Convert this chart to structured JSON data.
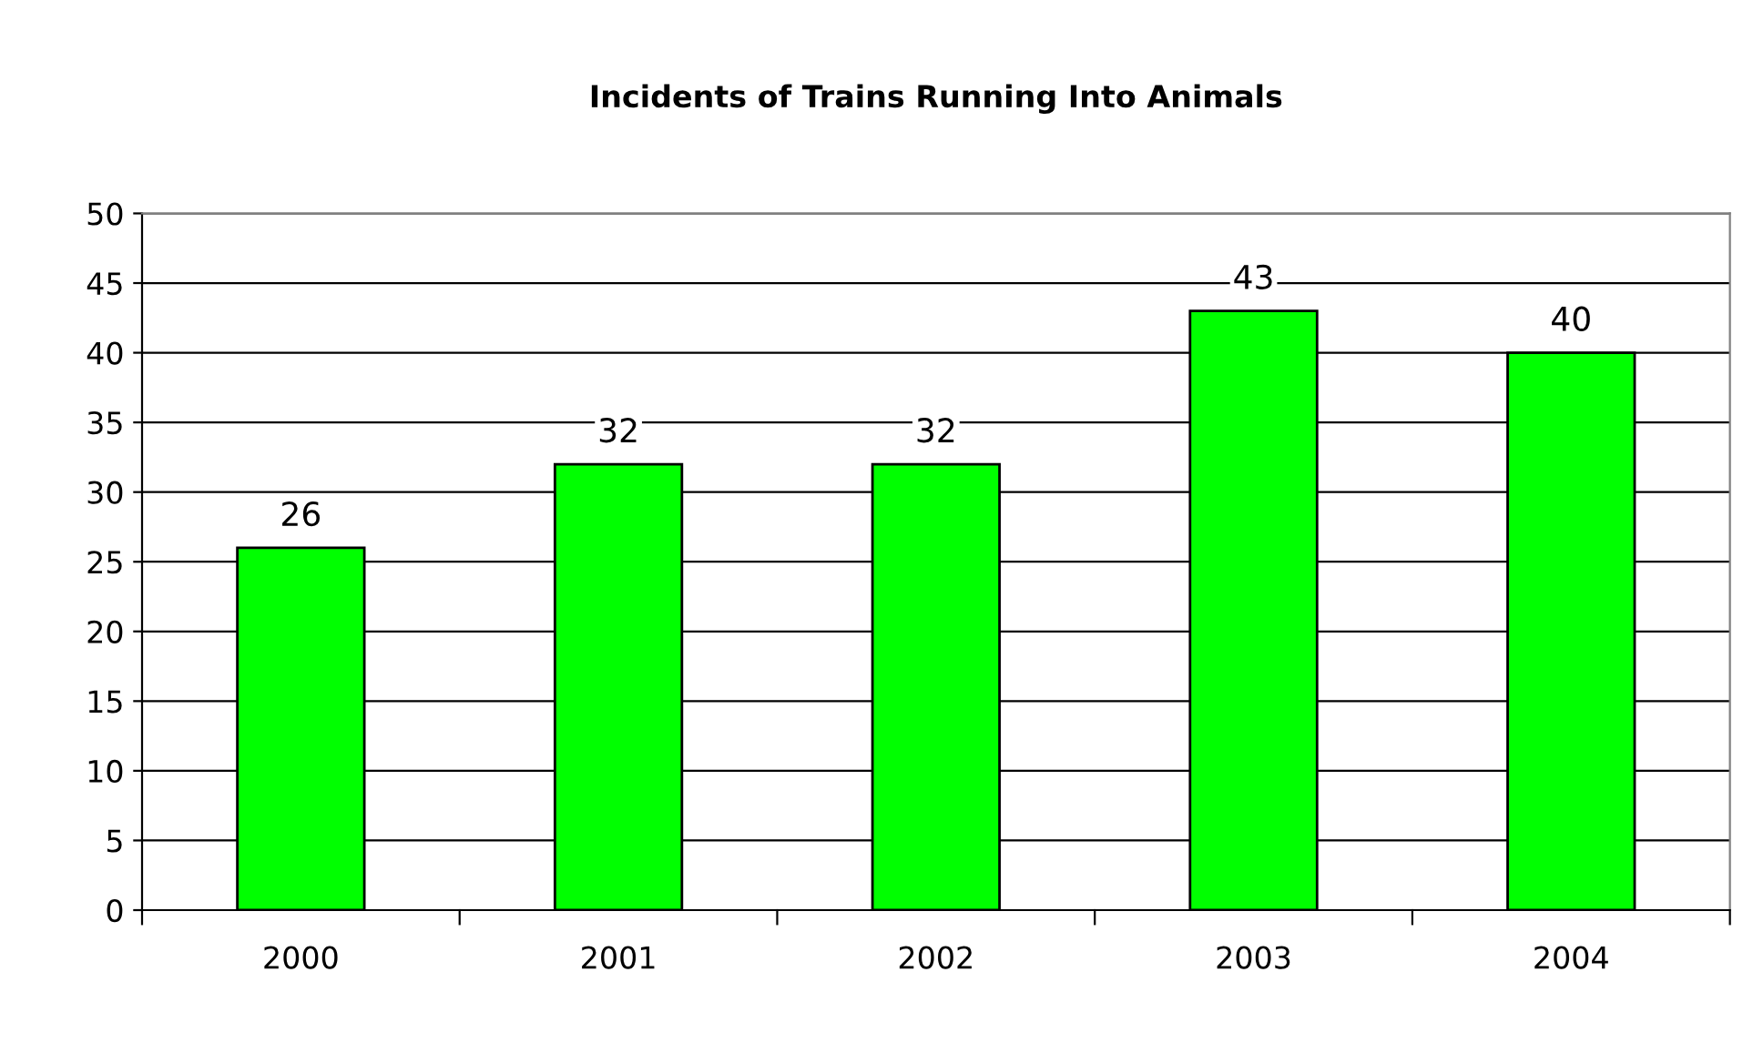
{
  "chart_data": {
    "type": "bar",
    "title": "Incidents of Trains Running Into Animals",
    "categories": [
      "2000",
      "2001",
      "2002",
      "2003",
      "2004"
    ],
    "values": [
      26,
      32,
      32,
      43,
      40
    ],
    "color": "#00ff00",
    "ylim": [
      0,
      50
    ],
    "yticks": [
      0,
      5,
      10,
      15,
      20,
      25,
      30,
      35,
      40,
      45,
      50
    ],
    "grid": "y",
    "data_labels": true,
    "legend": false
  }
}
